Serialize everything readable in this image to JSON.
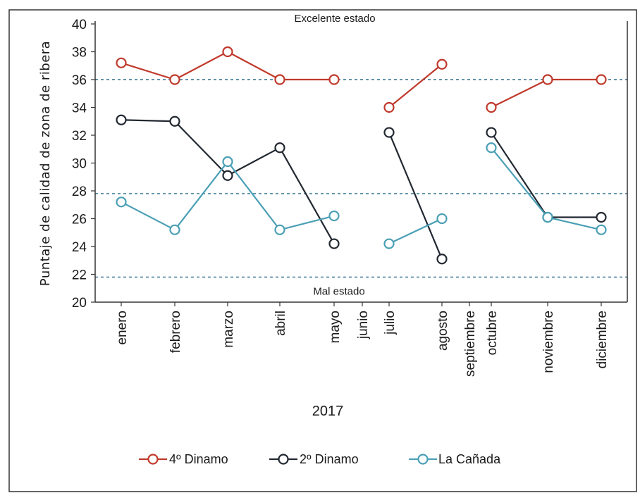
{
  "chart_data": {
    "type": "line",
    "title": "",
    "xlabel": "2017",
    "ylabel": "Puntaje de calidad de zona de ribera",
    "ylim": [
      20,
      40
    ],
    "yticks": [
      20,
      22,
      24,
      26,
      28,
      30,
      32,
      34,
      36,
      38,
      40
    ],
    "grid": false,
    "legend_position": "bottom",
    "categories": [
      "enero",
      "febrero",
      "marzo",
      "abril",
      "mayo",
      "junio",
      "julio",
      "agosto",
      "septiembre",
      "octubre",
      "noviembre",
      "diciembre"
    ],
    "reference_lines": [
      {
        "value": 36,
        "label": "Excelente estado"
      },
      {
        "value": 27.8,
        "label": ""
      },
      {
        "value": 21.8,
        "label": "Mal estado"
      }
    ],
    "series": [
      {
        "name": "4º Dinamo",
        "color": "#c0392b",
        "values": [
          37.2,
          36,
          38,
          36,
          36,
          null,
          34,
          37.1,
          null,
          34,
          36,
          36
        ]
      },
      {
        "name": "2º Dinamo",
        "color": "#222831",
        "values": [
          33.1,
          33,
          29.1,
          31.1,
          24.2,
          null,
          32.2,
          23.1,
          null,
          32.2,
          26.1,
          26.1
        ]
      },
      {
        "name": "La Cañada",
        "color": "#4a9fb5",
        "values": [
          27.2,
          25.2,
          30.1,
          25.2,
          26.2,
          null,
          24.2,
          26,
          null,
          31.1,
          26.1,
          25.2
        ]
      }
    ]
  }
}
